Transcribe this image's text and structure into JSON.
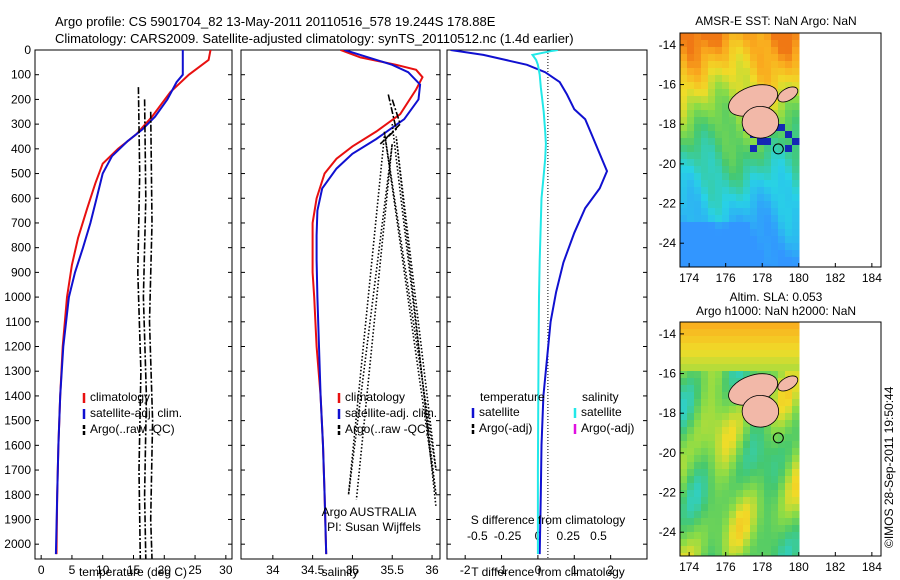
{
  "header": {
    "line1": "Argo profile: CS 5901704_82 13-May-2011 20110516_578 19.244S 178.88E",
    "line2": "Climatology: CARS2009. Satellite-adjusted climatology: synTS_20110512.nc (1.4d earlier)"
  },
  "colors": {
    "climatology": "#e81010",
    "satellite": "#1010d0",
    "argo": "#000000",
    "sat_diff": "#22e8e8",
    "argo_diff": "#e010e0"
  },
  "chart_data": [
    {
      "type": "line",
      "id": "temperature",
      "xlabel": "temperature (deg C)",
      "xlim": [
        -1,
        31
      ],
      "ylim": [
        2060,
        0
      ],
      "xticks": [
        0,
        5,
        10,
        15,
        20,
        25,
        30
      ],
      "yticks": [
        0,
        100,
        200,
        300,
        400,
        500,
        600,
        700,
        800,
        900,
        1000,
        1100,
        1200,
        1300,
        1400,
        1500,
        1600,
        1700,
        1800,
        1900,
        2000
      ],
      "legend": [
        "climatology",
        "satellite-adj. clim.",
        "Argo(..raw -QC)"
      ],
      "series": [
        {
          "name": "climatology",
          "color_key": "climatology",
          "points": [
            [
              27.5,
              0
            ],
            [
              27.2,
              40
            ],
            [
              24,
              100
            ],
            [
              21,
              170
            ],
            [
              18,
              270
            ],
            [
              15.5,
              340
            ],
            [
              12.5,
              400
            ],
            [
              10,
              460
            ],
            [
              8.8,
              540
            ],
            [
              7.5,
              640
            ],
            [
              6,
              760
            ],
            [
              5,
              870
            ],
            [
              4.2,
              1000
            ],
            [
              3.5,
              1200
            ],
            [
              3.1,
              1400
            ],
            [
              2.8,
              1600
            ],
            [
              2.6,
              1800
            ],
            [
              2.5,
              2040
            ]
          ]
        },
        {
          "name": "satellite-adj. clim.",
          "color_key": "satellite",
          "points": [
            [
              23,
              0
            ],
            [
              23,
              100
            ],
            [
              22,
              130
            ],
            [
              20.5,
              200
            ],
            [
              18.5,
              270
            ],
            [
              16.5,
              320
            ],
            [
              14,
              370
            ],
            [
              11.5,
              430
            ],
            [
              10,
              500
            ],
            [
              9,
              600
            ],
            [
              8,
              700
            ],
            [
              6.8,
              800
            ],
            [
              5.5,
              900
            ],
            [
              4.5,
              1000
            ],
            [
              3.6,
              1200
            ],
            [
              3.1,
              1400
            ],
            [
              2.8,
              1600
            ],
            [
              2.6,
              1800
            ],
            [
              2.4,
              2040
            ]
          ]
        },
        {
          "name": "Argo(..raw -QC)",
          "color_key": "argo",
          "style": "dashdot",
          "points": [
            [
              15.8,
              150
            ],
            [
              16,
              500
            ],
            [
              15.7,
              900
            ],
            [
              16.2,
              1300
            ],
            [
              15.9,
              1700
            ],
            [
              16.1,
              2060
            ]
          ]
        },
        {
          "name": "Argo(..raw -QC)",
          "color_key": "argo",
          "style": "dashdot",
          "points": [
            [
              16.8,
              200
            ],
            [
              17,
              600
            ],
            [
              16.6,
              1000
            ],
            [
              17.1,
              1400
            ],
            [
              16.8,
              1800
            ],
            [
              17,
              2060
            ]
          ]
        },
        {
          "name": "Argo(..raw -QC)",
          "color_key": "argo",
          "style": "dashdot",
          "points": [
            [
              17.8,
              250
            ],
            [
              18,
              700
            ],
            [
              17.6,
              1100
            ],
            [
              18.1,
              1500
            ],
            [
              17.8,
              1900
            ],
            [
              18,
              2060
            ]
          ]
        }
      ]
    },
    {
      "type": "line",
      "id": "salinity",
      "xlabel": "salinity",
      "xlim": [
        33.6,
        36.1
      ],
      "ylim": [
        2060,
        0
      ],
      "xticks": [
        34,
        34.5,
        35,
        35.5,
        36
      ],
      "legend": [
        "climatology",
        "satellite-adj. clim.",
        "Argo(..raw -QC)"
      ],
      "annotations": [
        "Argo AUSTRALIA",
        "PI: Susan Wijffels"
      ],
      "series": [
        {
          "name": "climatology",
          "color_key": "climatology",
          "points": [
            [
              34.85,
              0
            ],
            [
              35.1,
              30
            ],
            [
              35.55,
              60
            ],
            [
              35.8,
              80
            ],
            [
              35.88,
              110
            ],
            [
              35.8,
              160
            ],
            [
              35.6,
              260
            ],
            [
              35.3,
              330
            ],
            [
              35,
              390
            ],
            [
              34.8,
              440
            ],
            [
              34.65,
              500
            ],
            [
              34.55,
              600
            ],
            [
              34.5,
              700
            ],
            [
              34.5,
              800
            ],
            [
              34.5,
              900
            ],
            [
              34.52,
              1000
            ],
            [
              34.55,
              1200
            ],
            [
              34.6,
              1400
            ],
            [
              34.63,
              1600
            ],
            [
              34.65,
              1800
            ],
            [
              34.67,
              2040
            ]
          ]
        },
        {
          "name": "satellite-adj. clim.",
          "color_key": "satellite",
          "points": [
            [
              34.9,
              0
            ],
            [
              35.2,
              30
            ],
            [
              35.5,
              60
            ],
            [
              35.7,
              90
            ],
            [
              35.85,
              140
            ],
            [
              35.83,
              200
            ],
            [
              35.65,
              280
            ],
            [
              35.3,
              360
            ],
            [
              35,
              420
            ],
            [
              34.8,
              480
            ],
            [
              34.62,
              560
            ],
            [
              34.56,
              650
            ],
            [
              34.55,
              750
            ],
            [
              34.55,
              850
            ],
            [
              34.56,
              1000
            ],
            [
              34.58,
              1200
            ],
            [
              34.6,
              1400
            ],
            [
              34.63,
              1600
            ],
            [
              34.65,
              1800
            ],
            [
              34.67,
              2040
            ]
          ]
        },
        {
          "name": "Argo(..raw -QC)",
          "color_key": "argo",
          "style": "dashdot",
          "points": [
            [
              35.45,
              180
            ],
            [
              35.55,
              320
            ],
            [
              35.35,
              380
            ],
            [
              35.6,
              300
            ],
            [
              35.5,
              200
            ]
          ]
        },
        {
          "name": "Argo(..raw -QC)",
          "color_key": "argo",
          "style": "dotted",
          "points": [
            [
              35.5,
              300
            ],
            [
              36.05,
              1800
            ],
            [
              35.4,
              330
            ],
            [
              36.05,
              1700
            ],
            [
              35.55,
              350
            ],
            [
              36.05,
              1850
            ]
          ]
        },
        {
          "name": "Argo(..raw -QC)",
          "color_key": "argo",
          "style": "dotted",
          "points": [
            [
              35.4,
              350
            ],
            [
              34.95,
              1800
            ],
            [
              35.5,
              380
            ],
            [
              35.05,
              1820
            ]
          ]
        }
      ]
    },
    {
      "type": "line",
      "id": "difference",
      "xlabel": "T difference from climatology",
      "xlabel2": "S difference from climatology",
      "xlim": [
        -2.5,
        3
      ],
      "xlim2": [
        -0.75,
        0.9
      ],
      "ylim": [
        2060,
        0
      ],
      "xticks": [
        -2,
        -1,
        0,
        1,
        2
      ],
      "xticks2_labels": [
        "-0.5",
        "-0.25",
        "0",
        "0.25",
        "0.5"
      ],
      "xticks2": [
        -0.5,
        -0.25,
        0,
        0.25,
        0.5
      ],
      "legend": {
        "temperature_title": "temperature",
        "salinity_title": "salinity",
        "items": [
          "satellite",
          "Argo(-adj)",
          "satellite",
          "Argo(-adj)"
        ]
      },
      "series": [
        {
          "name": "temperature satellite",
          "color_key": "satellite",
          "points": [
            [
              -2.4,
              0
            ],
            [
              -1.5,
              20
            ],
            [
              -0.3,
              60
            ],
            [
              0.2,
              90
            ],
            [
              0.6,
              130
            ],
            [
              0.8,
              180
            ],
            [
              1,
              240
            ],
            [
              1.3,
              280
            ],
            [
              1.5,
              350
            ],
            [
              1.7,
              420
            ],
            [
              1.9,
              490
            ],
            [
              1.7,
              560
            ],
            [
              1.3,
              640
            ],
            [
              1,
              740
            ],
            [
              0.7,
              860
            ],
            [
              0.5,
              980
            ],
            [
              0.35,
              1100
            ],
            [
              0.25,
              1250
            ],
            [
              0.15,
              1400
            ],
            [
              0.1,
              1600
            ],
            [
              0.08,
              1800
            ],
            [
              0.05,
              2040
            ]
          ]
        },
        {
          "name": "salinity satellite",
          "color_key": "sat_diff",
          "points": [
            [
              0.55,
              0
            ],
            [
              0.35,
              5
            ],
            [
              -0.15,
              20
            ],
            [
              -0.05,
              40
            ],
            [
              0,
              60
            ],
            [
              0.05,
              100
            ],
            [
              0.08,
              150
            ],
            [
              0.16,
              250
            ],
            [
              0.2,
              330
            ],
            [
              0.22,
              380
            ],
            [
              0.2,
              440
            ],
            [
              0.15,
              520
            ],
            [
              0.1,
              600
            ],
            [
              0.08,
              700
            ],
            [
              0.05,
              850
            ],
            [
              0.03,
              1000
            ],
            [
              0.02,
              1200
            ],
            [
              0.01,
              1400
            ],
            [
              0,
              1700
            ],
            [
              0,
              2040
            ]
          ]
        }
      ]
    },
    {
      "type": "heatmap",
      "id": "sst-map",
      "title": "AMSR-E SST: NaN Argo: NaN",
      "xlim": [
        173.5,
        184.5
      ],
      "ylim": [
        -25.2,
        -13.4
      ],
      "xticks": [
        174,
        176,
        178,
        180,
        182,
        184
      ],
      "yticks": [
        -14,
        -16,
        -18,
        -20,
        -22,
        -24
      ],
      "marker": {
        "lon": 178.88,
        "lat": -19.244
      }
    },
    {
      "type": "heatmap",
      "id": "sla-map",
      "title": "Altim. SLA: 0.053",
      "subtitle": "Argo h1000: NaN h2000: NaN",
      "xlim": [
        173.5,
        184.5
      ],
      "ylim": [
        -25.2,
        -13.4
      ],
      "xticks": [
        174,
        176,
        178,
        180,
        182,
        184
      ],
      "yticks": [
        -14,
        -16,
        -18,
        -20,
        -22,
        -24
      ],
      "marker": {
        "lon": 178.88,
        "lat": -19.244
      }
    }
  ],
  "footer": {
    "stamp": "©IMOS 28-Sep-2011 19:50:44"
  }
}
